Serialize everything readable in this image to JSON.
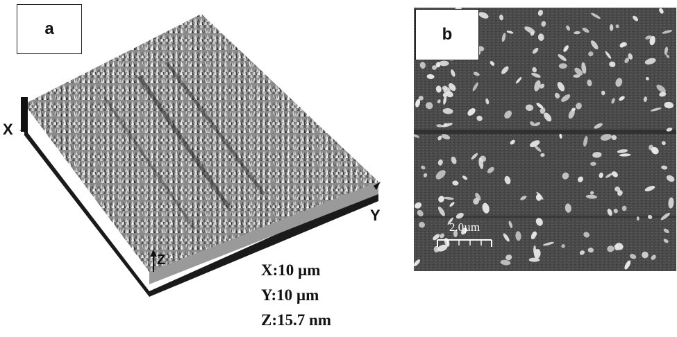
{
  "panels": {
    "a": {
      "label": "a"
    },
    "b": {
      "label": "b"
    }
  },
  "axes": {
    "x": "X",
    "y": "Y",
    "z": "Z"
  },
  "dimensions": {
    "x": "X:10 µm",
    "y": "Y:10 µm",
    "z": "Z:15.7 nm"
  },
  "scale_bar": {
    "label": "2.0µm"
  }
}
